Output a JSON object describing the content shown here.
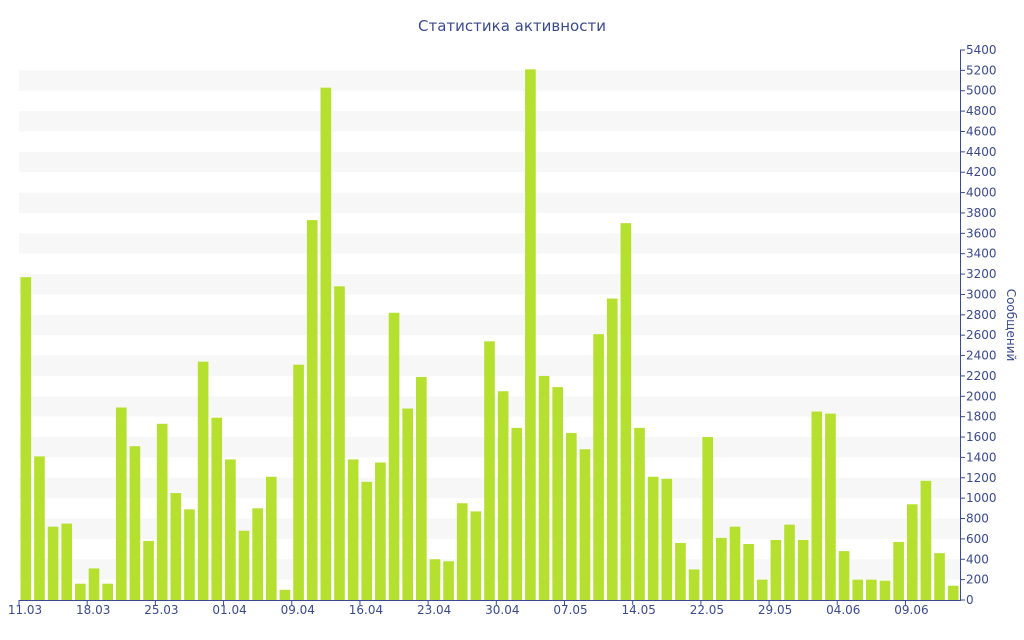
{
  "chart_data": {
    "type": "bar",
    "title": "Статистика активности",
    "xlabel": "",
    "ylabel": "Сообщений",
    "ylim": [
      0,
      5400
    ],
    "ytick_step": 200,
    "grid": "alternating horizontal bands",
    "colors": {
      "bar": "#b5e02f",
      "band": "#f7f7f7",
      "text": "#3b4a8c",
      "axis": "#3b4a8c"
    },
    "x_tick_labels": [
      "11.03",
      "18.03",
      "25.03",
      "01.04",
      "09.04",
      "16.04",
      "23.04",
      "30.04",
      "07.05",
      "14.05",
      "22.05",
      "29.05",
      "04.06",
      "09.06"
    ],
    "values": [
      3170,
      1410,
      720,
      750,
      160,
      310,
      160,
      1890,
      1510,
      580,
      1730,
      1050,
      890,
      2340,
      1790,
      1380,
      680,
      900,
      1210,
      100,
      2310,
      3730,
      5030,
      3080,
      1380,
      1160,
      1350,
      2820,
      1880,
      2190,
      400,
      380,
      950,
      870,
      2540,
      2050,
      1690,
      5210,
      2200,
      2090,
      1640,
      1480,
      2610,
      2960,
      3700,
      1690,
      1210,
      1190,
      560,
      300,
      1600,
      610,
      720,
      550,
      200,
      590,
      740,
      590,
      1850,
      1830,
      480,
      200,
      200,
      190,
      570,
      940,
      1170,
      460,
      140
    ]
  }
}
